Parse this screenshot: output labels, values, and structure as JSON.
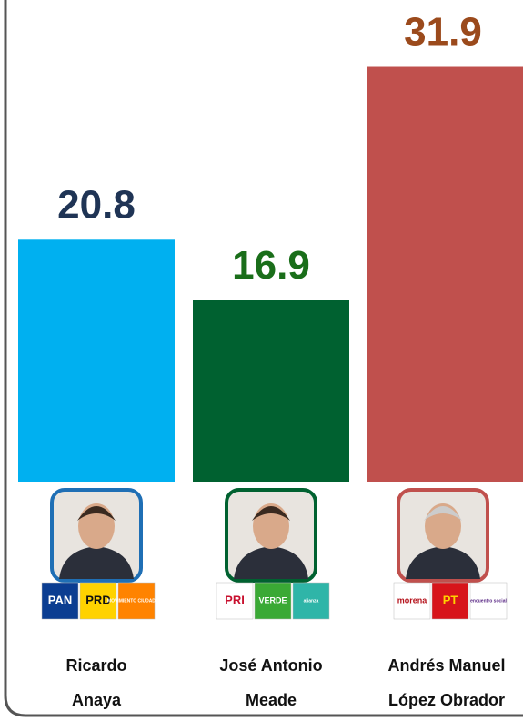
{
  "chart_data": {
    "type": "bar",
    "categories": [
      "Ricardo\nAnaya",
      "José Antonio\nMeade",
      "Andrés  Manuel\nLópez  Obrador"
    ],
    "values": [
      20.8,
      16.9,
      31.9
    ],
    "colors": [
      "#00b0f0",
      "#006130",
      "#c0504d"
    ],
    "label_colors": [
      "#1f3455",
      "#1a6e1a",
      "#9b4a1c"
    ],
    "ylim": [
      5.2,
      36.2
    ],
    "party_logos": [
      [
        "PAN",
        "PRD",
        "MOVIMIENTO CIUDADANO"
      ],
      [
        "PRI",
        "VERDE",
        "alianza"
      ],
      [
        "morena",
        "PT",
        "encuentro social"
      ]
    ]
  }
}
